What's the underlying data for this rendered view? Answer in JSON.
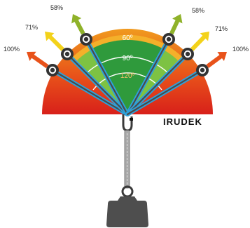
{
  "brand": "IRUDEK",
  "zones": [
    {
      "angle_label": "60º",
      "color": "#2f9a3c",
      "text_color": "#ffffff"
    },
    {
      "angle_label": "90º",
      "color": "#7dc243",
      "text_color": "#ffffff"
    },
    {
      "angle_label": "120º",
      "color": "#f2a51e",
      "text_color": "#f6c16a"
    },
    {
      "angle_label": "",
      "color": "#df2a1c",
      "text_color": "#ffffff"
    }
  ],
  "arms": [
    {
      "side": "left",
      "label": "100%",
      "arrow_color": "#e8521a"
    },
    {
      "side": "left",
      "label": "71%",
      "arrow_color": "#f3d21a"
    },
    {
      "side": "left",
      "label": "58%",
      "arrow_color": "#8fb22a"
    },
    {
      "side": "right",
      "label": "58%",
      "arrow_color": "#8fb22a"
    },
    {
      "side": "right",
      "label": "71%",
      "arrow_color": "#f3d21a"
    },
    {
      "side": "right",
      "label": "100%",
      "arrow_color": "#e8521a"
    }
  ],
  "colors": {
    "strap": "#2ea1d9",
    "arm": "#4a4a4a",
    "ring": "#333333",
    "lanyard": "#9a9a9a",
    "weight": "#4e4e4e"
  }
}
